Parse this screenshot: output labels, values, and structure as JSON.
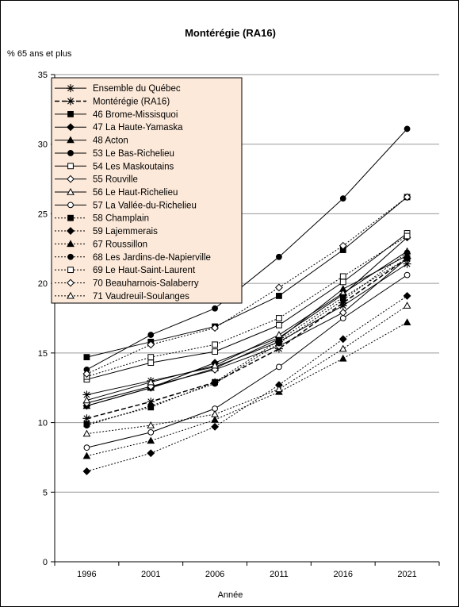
{
  "chart_data": {
    "type": "line",
    "title": "Montérégie (RA16)",
    "ylabel": "% 65 ans et plus",
    "xlabel": "Année",
    "categories": [
      "1996",
      "2001",
      "2006",
      "2011",
      "2016",
      "2021"
    ],
    "ylim": [
      0,
      35
    ],
    "yticks": [
      "0",
      "5",
      "10",
      "15",
      "20",
      "25",
      "30",
      "35"
    ],
    "grid": true,
    "legend_position": "top-left",
    "series": [
      {
        "name": "Ensemble du Québec",
        "dash": "solid",
        "marker": "asterisk",
        "values": [
          12.0,
          13.0,
          14.0,
          15.8,
          18.4,
          21.4
        ]
      },
      {
        "name": "Montérégie (RA16)",
        "dash": "dashed",
        "marker": "asterisk",
        "values": [
          10.3,
          11.5,
          12.9,
          15.3,
          18.6,
          21.8
        ]
      },
      {
        "name": "46 Brome-Missisquoi",
        "dash": "solid",
        "marker": "square-filled",
        "values": [
          14.7,
          15.8,
          16.9,
          19.1,
          22.4,
          26.2
        ]
      },
      {
        "name": "47 La Haute-Yamaska",
        "dash": "solid",
        "marker": "diamond-filled",
        "values": [
          11.2,
          12.5,
          14.3,
          16.1,
          19.2,
          23.3
        ]
      },
      {
        "name": "48 Acton",
        "dash": "solid",
        "marker": "triangle-filled",
        "values": [
          11.2,
          12.5,
          13.9,
          16.0,
          19.6,
          22.0
        ]
      },
      {
        "name": "53 Le Bas-Richelieu",
        "dash": "solid",
        "marker": "circle-filled",
        "values": [
          13.8,
          16.3,
          18.2,
          21.9,
          26.1,
          31.1
        ]
      },
      {
        "name": "54 Les Maskoutains",
        "dash": "solid",
        "marker": "square-open",
        "values": [
          13.1,
          14.3,
          15.1,
          17.0,
          20.1,
          23.6
        ]
      },
      {
        "name": "55 Rouville",
        "dash": "solid",
        "marker": "diamond-open",
        "values": [
          11.4,
          12.6,
          13.8,
          15.5,
          17.9,
          21.8
        ]
      },
      {
        "name": "56 Le Haut-Richelieu",
        "dash": "solid",
        "marker": "triangle-open",
        "values": [
          11.6,
          12.9,
          14.1,
          16.3,
          19.3,
          22.3
        ]
      },
      {
        "name": "57 La Vallée-du-Richelieu",
        "dash": "solid",
        "marker": "circle-open",
        "values": [
          8.2,
          9.3,
          11.0,
          14.0,
          17.5,
          20.6
        ]
      },
      {
        "name": "58 Champlain",
        "dash": "dotted",
        "marker": "square-filled",
        "values": [
          9.9,
          11.1,
          12.9,
          15.9,
          19.0,
          21.8
        ]
      },
      {
        "name": "59 Lajemmerais",
        "dash": "dotted",
        "marker": "diamond-filled",
        "values": [
          6.5,
          7.8,
          9.7,
          12.7,
          16.0,
          19.1
        ]
      },
      {
        "name": "67 Roussillon",
        "dash": "dotted",
        "marker": "triangle-filled",
        "values": [
          7.6,
          8.7,
          10.2,
          12.2,
          14.6,
          17.2
        ]
      },
      {
        "name": "68 Les Jardins-de-Napierville",
        "dash": "dotted",
        "marker": "circle-filled",
        "values": [
          9.8,
          11.2,
          12.8,
          15.7,
          18.8,
          22.2
        ]
      },
      {
        "name": "69 Le Haut-Saint-Laurent",
        "dash": "dotted",
        "marker": "square-open",
        "values": [
          13.3,
          14.7,
          15.6,
          17.5,
          20.5,
          23.4
        ]
      },
      {
        "name": "70 Beauharnois-Salaberry",
        "dash": "dotted",
        "marker": "diamond-open",
        "values": [
          13.5,
          15.6,
          16.8,
          19.7,
          22.7,
          26.2
        ]
      },
      {
        "name": "71 Vaudreuil-Soulanges",
        "dash": "dotted",
        "marker": "triangle-open",
        "values": [
          9.2,
          9.8,
          10.6,
          12.4,
          15.3,
          18.4
        ]
      }
    ]
  }
}
